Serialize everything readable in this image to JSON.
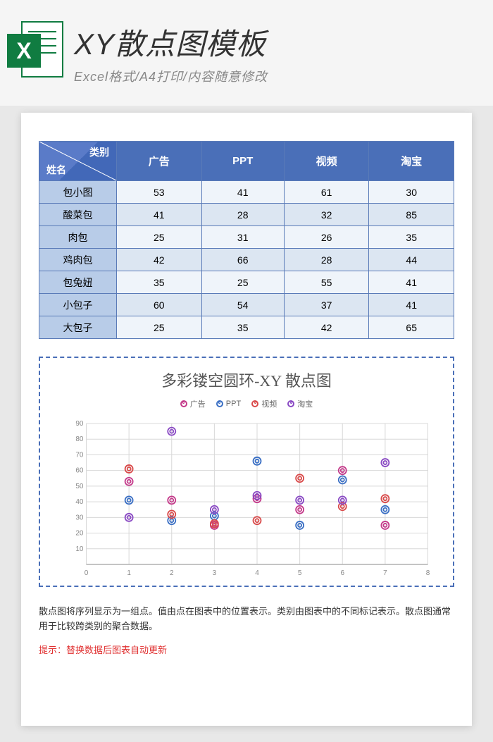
{
  "header": {
    "icon_letter": "X",
    "title": "XY散点图模板",
    "subtitle": "Excel格式/A4打印/内容随意修改"
  },
  "table": {
    "diag_top": "类别",
    "diag_bottom": "姓名",
    "columns": [
      "广告",
      "PPT",
      "视频",
      "淘宝"
    ],
    "rows": [
      {
        "name": "包小图",
        "values": [
          53,
          41,
          61,
          30
        ]
      },
      {
        "name": "酸菜包",
        "values": [
          41,
          28,
          32,
          85
        ]
      },
      {
        "name": "肉包",
        "values": [
          25,
          31,
          26,
          35
        ]
      },
      {
        "name": "鸡肉包",
        "values": [
          42,
          66,
          28,
          44
        ]
      },
      {
        "name": "包兔妞",
        "values": [
          35,
          25,
          55,
          41
        ]
      },
      {
        "name": "小包子",
        "values": [
          60,
          54,
          37,
          41
        ]
      },
      {
        "name": "大包子",
        "values": [
          25,
          35,
          42,
          65
        ]
      }
    ],
    "header_bg": "#4a6fb8",
    "name_cell_bg": "#b8cce8",
    "row_alt_bg": "#dce6f2",
    "row_norm_bg": "#eff4fa",
    "border_color": "#5a7bb8"
  },
  "chart": {
    "title": "多彩镂空圆环-XY 散点图",
    "type": "scatter",
    "series": [
      {
        "name": "广告",
        "color": "#c43a8a"
      },
      {
        "name": "PPT",
        "color": "#3a6fc4"
      },
      {
        "name": "视频",
        "color": "#d94a4a"
      },
      {
        "name": "淘宝",
        "color": "#8a4ac4"
      }
    ],
    "x_values": [
      1,
      2,
      3,
      4,
      5,
      6,
      7
    ],
    "xlim": [
      0,
      8
    ],
    "ylim": [
      0,
      90
    ],
    "ytick_step": 10,
    "xtick_step": 1,
    "grid_color": "#d8d8d8",
    "axis_color": "#b0b0b0",
    "tick_fontsize": 10,
    "title_fontsize": 22,
    "marker_outer_r": 5.5,
    "marker_inner_r": 2.5,
    "marker_stroke": 1.8,
    "border_dash": "6,4",
    "border_color": "#4a6fb8"
  },
  "description": "散点图将序列显示为一组点。值由点在图表中的位置表示。类别由图表中的不同标记表示。散点图通常用于比较跨类别的聚合数据。",
  "hint": "提示：替换数据后图表自动更新"
}
